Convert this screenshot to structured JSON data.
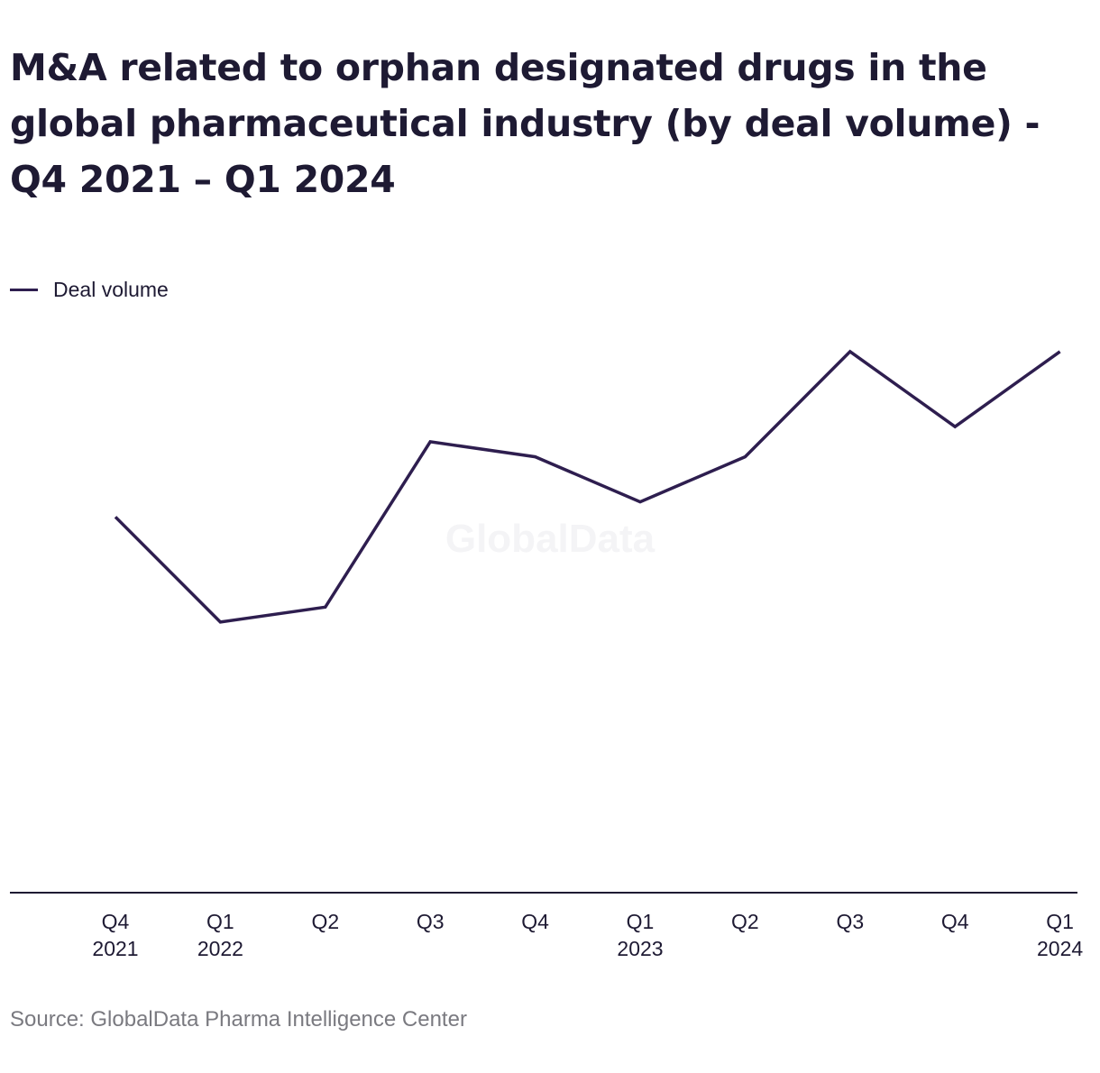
{
  "title_lines": [
    "M&A related to orphan designated drugs in the",
    "global pharmaceutical industry (by deal volume) -",
    "Q4 2021 – Q1 2024"
  ],
  "source": "Source: GlobalData Pharma Intelligence Center",
  "watermark": "GlobalData",
  "colors": {
    "line": "#2e1e4f",
    "text": "#1e1a33",
    "axis": "#1e1a33",
    "source": "#7a7a80",
    "watermark": "#f4f4f6"
  },
  "chart_data": {
    "type": "line",
    "title": "M&A related to orphan designated drugs in the global pharmaceutical industry (by deal volume) - Q4 2021 – Q1 2024",
    "categories": [
      [
        "Q4",
        "2021"
      ],
      [
        "Q1",
        "2022"
      ],
      [
        "Q2",
        ""
      ],
      [
        "Q3",
        ""
      ],
      [
        "Q4",
        ""
      ],
      [
        "Q1",
        "2023"
      ],
      [
        "Q2",
        ""
      ],
      [
        "Q3",
        ""
      ],
      [
        "Q4",
        ""
      ],
      [
        "Q1",
        "2024"
      ]
    ],
    "series": [
      {
        "name": "Deal volume",
        "values": [
          25,
          18,
          19,
          30,
          29,
          26,
          29,
          36,
          31,
          36
        ]
      }
    ],
    "ylim": [
      0,
      50
    ],
    "grid": false,
    "legend": "top-left",
    "xlabel": "",
    "ylabel": ""
  }
}
